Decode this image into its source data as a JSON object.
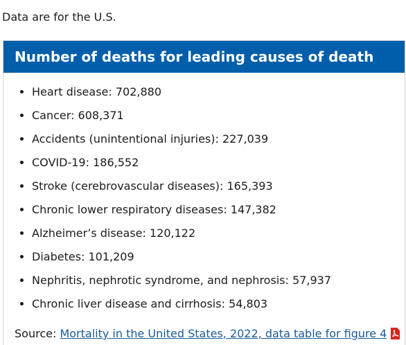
{
  "intro": "Data are for the U.S.",
  "box": {
    "title": "Number of deaths for leading causes of death",
    "items": [
      "Heart disease: 702,880",
      "Cancer: 608,371",
      "Accidents (unintentional injuries): 227,039",
      "COVID-19: 186,552",
      "Stroke (cerebrovascular diseases): 165,393",
      "Chronic lower respiratory diseases: 147,382",
      "Alzheimer’s disease: 120,122",
      "Diabetes: 101,209",
      "Nephritis, nephrotic syndrome, and nephrosis: 57,937",
      "Chronic liver disease and cirrhosis: 54,803"
    ],
    "source_label": "Source:",
    "source_link": "Mortality in the United States, 2022, data table for figure 4"
  }
}
